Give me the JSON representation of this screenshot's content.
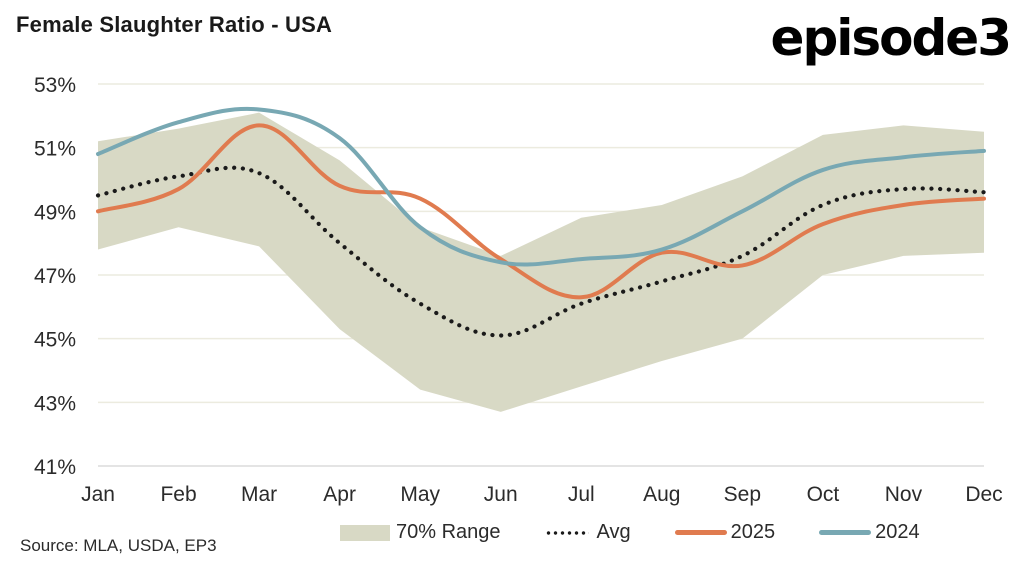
{
  "header": {
    "title": "Female Slaughter Ratio - USA",
    "logo": "episode3"
  },
  "footer": {
    "source": "Source: MLA, USDA, EP3"
  },
  "legend": [
    {
      "key": "range",
      "label": "70% Range",
      "style": "band",
      "color": "#d8d9c5"
    },
    {
      "key": "avg",
      "label": "Avg",
      "style": "dotted",
      "color": "#1a1a1a"
    },
    {
      "key": "y2025",
      "label": "2025",
      "style": "line",
      "color": "#e07b4f"
    },
    {
      "key": "y2024",
      "label": "2024",
      "style": "line",
      "color": "#78a8b3"
    }
  ],
  "chart_data": {
    "type": "line",
    "title": "Female Slaughter Ratio - USA",
    "xlabel": "",
    "ylabel": "",
    "categories": [
      "Jan",
      "Feb",
      "Mar",
      "Apr",
      "May",
      "Jun",
      "Jul",
      "Aug",
      "Sep",
      "Oct",
      "Nov",
      "Dec"
    ],
    "yticks": [
      "41%",
      "43%",
      "45%",
      "47%",
      "49%",
      "51%",
      "53%"
    ],
    "ytick_values": [
      41,
      43,
      45,
      47,
      49,
      51,
      53
    ],
    "ylim": [
      41,
      53
    ],
    "grid": "horizontal",
    "legend_position": "bottom",
    "band": {
      "name": "70% Range",
      "color": "#d8d9c5",
      "upper": [
        51.2,
        51.6,
        52.1,
        50.6,
        48.5,
        47.6,
        48.8,
        49.2,
        50.1,
        51.4,
        51.7,
        51.5
      ],
      "lower": [
        47.8,
        48.5,
        47.9,
        45.3,
        43.4,
        42.7,
        43.5,
        44.3,
        45.0,
        47.0,
        47.6,
        47.7
      ]
    },
    "series": [
      {
        "name": "Avg",
        "style": "dotted",
        "color": "#1a1a1a",
        "values": [
          49.5,
          50.1,
          50.2,
          48.0,
          46.1,
          45.1,
          46.1,
          46.8,
          47.6,
          49.2,
          49.7,
          49.6
        ]
      },
      {
        "name": "2025",
        "style": "solid",
        "color": "#e07b4f",
        "values": [
          49.0,
          49.7,
          51.7,
          49.8,
          49.4,
          47.5,
          46.3,
          47.7,
          47.3,
          48.6,
          49.2,
          49.4
        ]
      },
      {
        "name": "2024",
        "style": "solid",
        "color": "#78a8b3",
        "values": [
          50.8,
          51.8,
          52.2,
          51.3,
          48.5,
          47.4,
          47.5,
          47.8,
          49.0,
          50.3,
          50.7,
          50.9
        ]
      }
    ],
    "units": "%"
  }
}
